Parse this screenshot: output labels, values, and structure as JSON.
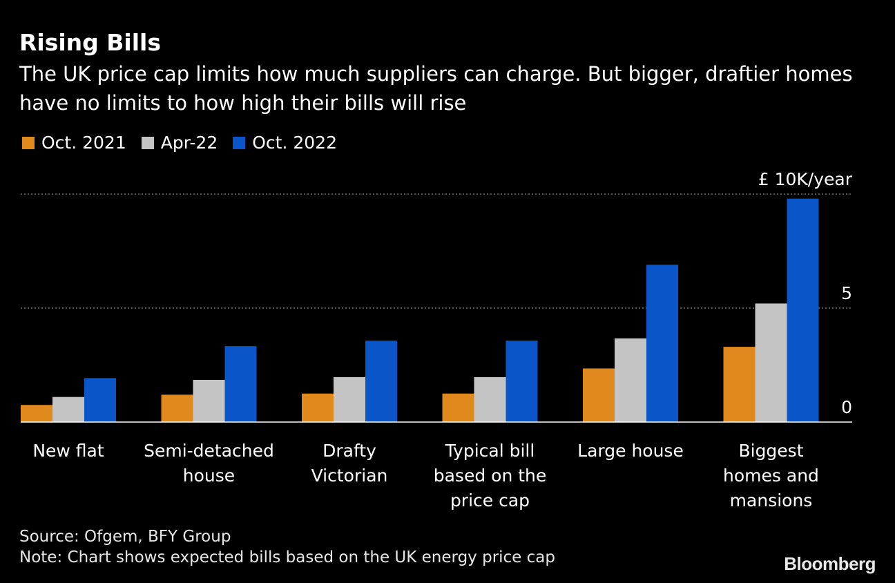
{
  "title": "Rising Bills",
  "subtitle": "The UK price cap limits how much suppliers can charge. But bigger, draftier homes have no limits to how high their bills will rise",
  "source": "Source: Ofgem, BFY Group",
  "note": "Note: Chart shows expected bills based on the UK energy price cap",
  "brand": "Bloomberg",
  "chart_data": {
    "type": "bar",
    "title": "Rising Bills",
    "xlabel": "",
    "ylabel": "£ 10K/year",
    "y_unit_label": "£ 10K/year",
    "ylim": [
      0,
      10
    ],
    "yticks": [
      0,
      5,
      10
    ],
    "ytick_labels": [
      "0",
      "5",
      "£ 10K/year"
    ],
    "grid": true,
    "legend_position": "top-left",
    "categories": [
      [
        "New flat"
      ],
      [
        "Semi-detached",
        "house"
      ],
      [
        "Drafty",
        "Victorian"
      ],
      [
        "Typical bill",
        "based on the",
        "price cap"
      ],
      [
        "Large house"
      ],
      [
        "Biggest",
        "homes and",
        "mansions"
      ]
    ],
    "series": [
      {
        "name": "Oct. 2021",
        "color": "#e08a1e",
        "values": [
          0.75,
          1.2,
          1.25,
          1.25,
          2.35,
          3.3
        ]
      },
      {
        "name": "Apr-22",
        "color": "#c4c4c4",
        "values": [
          1.1,
          1.85,
          1.97,
          1.97,
          3.67,
          5.2
        ]
      },
      {
        "name": "Oct. 2022",
        "color": "#0a55c8",
        "values": [
          1.93,
          3.33,
          3.57,
          3.57,
          6.9,
          9.8
        ]
      }
    ]
  }
}
